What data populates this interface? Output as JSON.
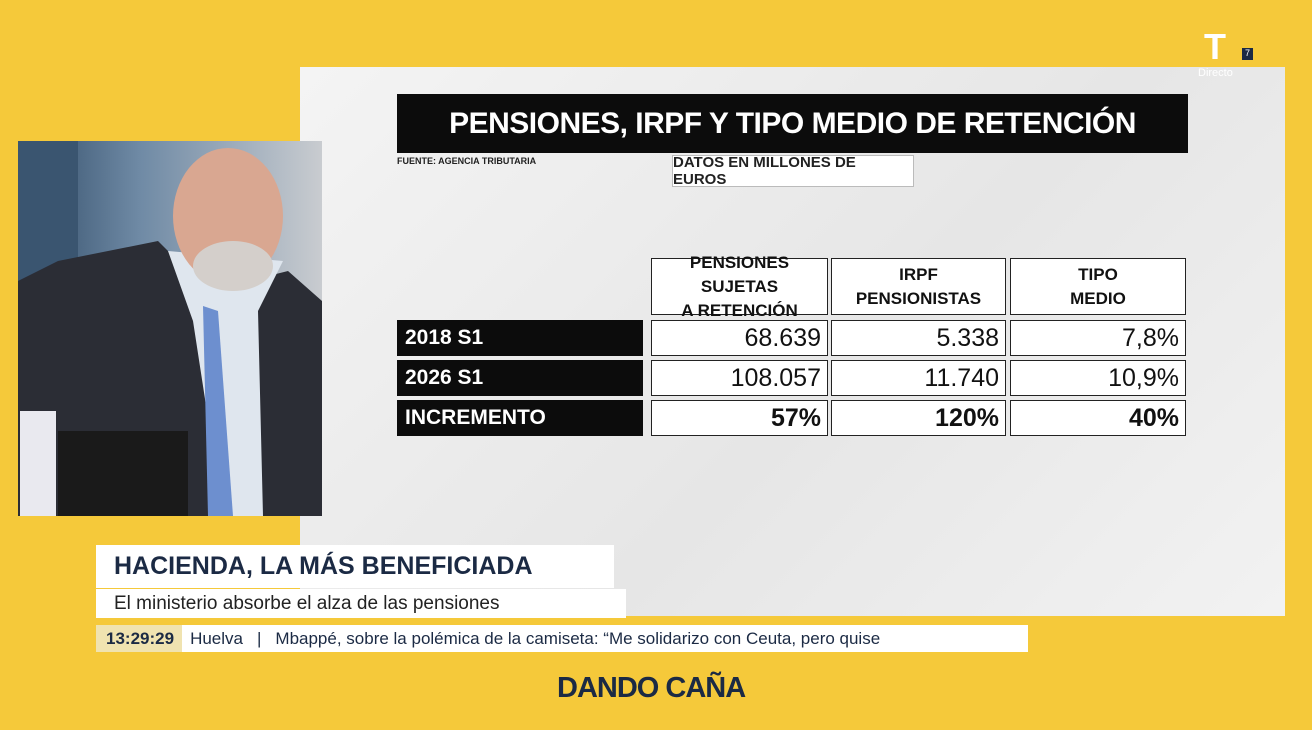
{
  "logo": {
    "channel": "T",
    "number": "7",
    "status": "Directo"
  },
  "graphic": {
    "title": "PENSIONES, IRPF Y TIPO MEDIO DE RETENCIÓN",
    "source": "FUENTE: AGENCIA TRIBUTARIA",
    "unit_note": "DATOS EN MILLONES DE EUROS",
    "table": {
      "columns": [
        [
          "PENSIONES SUJETAS",
          "A RETENCIÓN"
        ],
        [
          "IRPF",
          "PENSIONISTAS"
        ],
        [
          "TIPO",
          "MEDIO"
        ]
      ],
      "rows": [
        {
          "label": "2018 S1",
          "cells": [
            "68.639",
            "5.338",
            "7,8%"
          ]
        },
        {
          "label": "2026 S1",
          "cells": [
            "108.057",
            "11.740",
            "10,9%"
          ]
        },
        {
          "label": "INCREMENTO",
          "cells": [
            "57%",
            "120%",
            "40%"
          ]
        }
      ]
    }
  },
  "lower_third": {
    "headline": "HACIENDA, LA MÁS BENEFICIADA",
    "subtitle": "El ministerio absorbe el alza de las pensiones"
  },
  "ticker": {
    "time": "13:29:29",
    "location": "Huelva",
    "separator": "|",
    "text": "Mbappé, sobre la polémica de la camiseta: “Me solidarizo con Ceuta, pero quise"
  },
  "show": "DANDO CAÑA"
}
